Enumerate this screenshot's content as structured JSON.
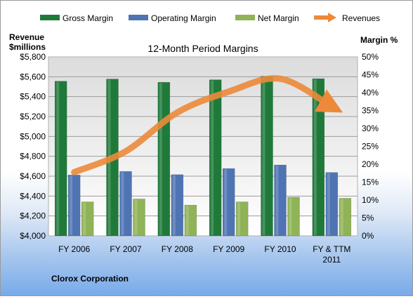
{
  "chart_data": {
    "type": "bar",
    "title": "12-Month Period Margins",
    "company": "Clorox Corporation",
    "left_axis": {
      "label_line1": "Revenue",
      "label_line2": "$millions",
      "range": [
        4000,
        5800
      ],
      "ticks": [
        "$4,000",
        "$4,200",
        "$4,400",
        "$4,600",
        "$4,800",
        "$5,000",
        "$5,200",
        "$5,400",
        "$5,600",
        "$5,800"
      ]
    },
    "right_axis": {
      "label": "Margin %",
      "range": [
        0,
        50
      ],
      "ticks": [
        "0%",
        "5%",
        "10%",
        "15%",
        "20%",
        "25%",
        "30%",
        "35%",
        "40%",
        "45%",
        "50%"
      ]
    },
    "categories": [
      "FY 2006",
      "FY 2007",
      "FY 2008",
      "FY 2009",
      "FY 2010",
      "FY & TTM 2011"
    ],
    "series": [
      {
        "name": "Gross Margin",
        "axis": "right",
        "kind": "bar",
        "color": "#1f7a3a",
        "values": [
          43.2,
          43.8,
          42.9,
          43.6,
          44.6,
          43.9
        ]
      },
      {
        "name": "Operating Margin",
        "axis": "right",
        "kind": "bar",
        "color": "#4f74b3",
        "values": [
          17.0,
          18.0,
          17.1,
          18.8,
          19.8,
          17.7
        ]
      },
      {
        "name": "Net Margin",
        "axis": "right",
        "kind": "bar",
        "color": "#8fb356",
        "values": [
          9.5,
          10.3,
          8.6,
          9.5,
          10.8,
          10.5
        ]
      },
      {
        "name": "Revenues",
        "axis": "left",
        "kind": "line",
        "color": "#ec8a3a",
        "values": [
          4640,
          4850,
          5240,
          5450,
          5580,
          5300
        ]
      }
    ],
    "legend_position": "top",
    "grid": true
  }
}
